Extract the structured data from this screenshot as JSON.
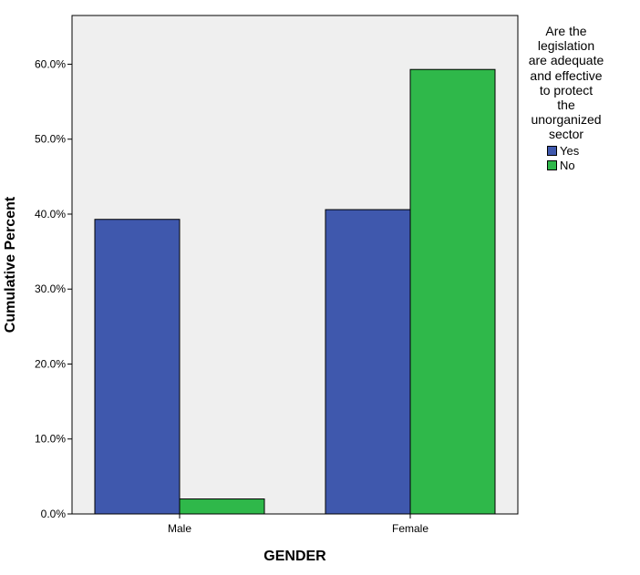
{
  "chart_data": {
    "type": "bar",
    "categories": [
      "Male",
      "Female"
    ],
    "series": [
      {
        "name": "Yes",
        "values": [
          39.3,
          40.6
        ],
        "color": "#3f58ad"
      },
      {
        "name": "No",
        "values": [
          2.0,
          59.3
        ],
        "color": "#2fb84a"
      }
    ],
    "xlabel": "GENDER",
    "ylabel": "Cumulative Percent",
    "ylim": [
      0,
      66.5
    ],
    "yticks": [
      0,
      10,
      20,
      30,
      40,
      50,
      60
    ],
    "ytick_labels": [
      "0.0%",
      "10.0%",
      "20.0%",
      "30.0%",
      "40.0%",
      "50.0%",
      "60.0%"
    ],
    "legend_title": "Are the legislation are adequate and effective to protect the unorganized sector",
    "legend_title_lines": [
      "Are the",
      "legislation",
      "are adequate",
      "and effective",
      "to protect",
      "the",
      "unorganized",
      "sector"
    ],
    "legend_position": "right",
    "plot_background": "#efefef",
    "grid": false
  }
}
